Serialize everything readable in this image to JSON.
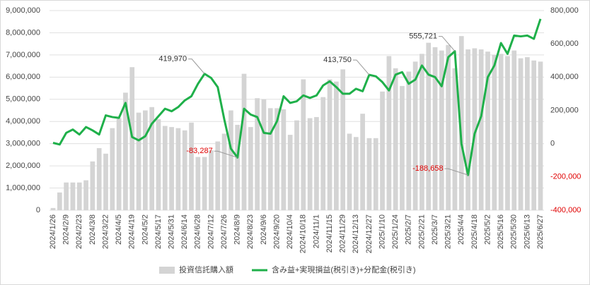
{
  "chart_data": {
    "type": "combo",
    "categories": [
      "2024/1/26",
      null,
      "2024/2/9",
      null,
      "2024/2/23",
      null,
      "2024/3/8",
      null,
      "2024/3/22",
      null,
      "2024/4/5",
      null,
      "2024/4/19",
      null,
      "2024/5/2",
      null,
      "2024/5/17",
      null,
      "2024/5/31",
      null,
      "2024/6/14",
      null,
      "2024/6/28",
      null,
      "2024/7/12",
      null,
      "2024/7/26",
      null,
      "2024/8/9",
      null,
      "2024/8/23",
      null,
      "2024/9/6",
      null,
      "2024/9/20",
      null,
      "2024/10/4",
      null,
      "2024/10/18",
      null,
      "2024/11/1",
      null,
      "2024/11/15",
      null,
      "2024/11/29",
      null,
      "2024/12/13",
      null,
      "2024/12/27",
      null,
      "2025/1/10",
      null,
      "2025/1/24",
      null,
      "2025/2/7",
      null,
      "2025/2/21",
      null,
      "2025/3/7",
      null,
      "2025/3/21",
      null,
      "2025/4/4",
      null,
      "2025/4/18",
      null,
      "2025/5/2",
      null,
      "2025/5/16",
      null,
      "2025/5/30",
      null,
      "2025/6/13",
      null,
      "2025/6/27"
    ],
    "series": [
      {
        "name": "投資信託購入額",
        "type": "bar",
        "color": "#d4d4d4",
        "axis": "y",
        "values": [
          100000,
          800000,
          1250000,
          1250000,
          1250000,
          1350000,
          2200000,
          2800000,
          2550000,
          3700000,
          4150000,
          5300000,
          6450000,
          4400000,
          4500000,
          4650000,
          4100000,
          3800000,
          3750000,
          3700000,
          3600000,
          3950000,
          2400000,
          2400000,
          2700000,
          3100000,
          3450000,
          4500000,
          3850000,
          6150000,
          3750000,
          5050000,
          5000000,
          4600000,
          4600000,
          4550000,
          3400000,
          4050000,
          5900000,
          4150000,
          4200000,
          5100000,
          5900000,
          5800000,
          6350000,
          3450000,
          3300000,
          4350000,
          3250000,
          3250000,
          5350000,
          6950000,
          6400000,
          5600000,
          6250000,
          6700000,
          7050000,
          7550000,
          7350000,
          7200000,
          7450000,
          6400000,
          7850000,
          7250000,
          7300000,
          7250000,
          7150000,
          7000000,
          7050000,
          6950000,
          7200000,
          6850000,
          6900000,
          6750000,
          6700000
        ]
      },
      {
        "name": "含み益+実現損益(税引き)+分配金(税引き)",
        "type": "line",
        "color": "#1fb04a",
        "axis": "y2",
        "values": [
          5000,
          -5000,
          65000,
          85000,
          55000,
          100000,
          80000,
          55000,
          170000,
          160000,
          155000,
          245000,
          40000,
          20000,
          45000,
          120000,
          165000,
          210000,
          195000,
          220000,
          260000,
          285000,
          360000,
          419970,
          395000,
          340000,
          145000,
          -30000,
          -83287,
          210000,
          175000,
          160000,
          65000,
          60000,
          135000,
          285000,
          245000,
          255000,
          290000,
          275000,
          290000,
          350000,
          375000,
          340000,
          300000,
          300000,
          330000,
          315000,
          413750,
          405000,
          370000,
          320000,
          415000,
          430000,
          360000,
          385000,
          470000,
          415000,
          400000,
          345000,
          520000,
          555721,
          0,
          -188658,
          60000,
          165000,
          400000,
          470000,
          605000,
          540000,
          650000,
          645000,
          650000,
          630000,
          750000
        ],
        "value_labels": [
          null,
          null,
          null,
          null,
          null,
          null,
          null,
          null,
          null,
          null,
          null,
          null,
          null,
          null,
          null,
          null,
          null,
          null,
          null,
          null,
          null,
          null,
          null,
          "419,970",
          null,
          null,
          null,
          null,
          "-83,287",
          null,
          null,
          null,
          null,
          null,
          null,
          null,
          null,
          null,
          null,
          null,
          null,
          null,
          null,
          null,
          null,
          null,
          null,
          null,
          "413,750",
          null,
          null,
          null,
          null,
          null,
          null,
          null,
          null,
          null,
          null,
          null,
          null,
          "555,721",
          null,
          "-188,658",
          null,
          null,
          null,
          null,
          null,
          null,
          null,
          null,
          null,
          null,
          null
        ]
      }
    ],
    "ylim": [
      0,
      9000000
    ],
    "yticks": [
      0,
      {
        "value": 1000000,
        "label": "1,000,000"
      },
      {
        "value": 2000000,
        "label": "2,000,000"
      },
      {
        "value": 3000000,
        "label": "3,000,000"
      },
      {
        "value": 4000000,
        "label": "4,000,000"
      },
      {
        "value": 5000000,
        "label": "5,000,000"
      },
      {
        "value": 6000000,
        "label": "6,000,000"
      },
      {
        "value": 7000000,
        "label": "7,000,000"
      },
      {
        "value": 8000000,
        "label": "8,000,000"
      },
      {
        "value": 9000000,
        "label": "9,000,000"
      }
    ],
    "y2lim": [
      -400000,
      800000
    ],
    "y2ticks": [
      {
        "value": -400000,
        "label": "-400,000"
      },
      {
        "value": -200000,
        "label": "-200,000"
      },
      0,
      {
        "value": 200000,
        "label": "200,000"
      },
      {
        "value": 400000,
        "label": "400,000"
      },
      {
        "value": 600000,
        "label": "600,000"
      },
      {
        "value": 800000,
        "label": "800,000"
      }
    ],
    "negative_color": "#e00000",
    "grid": true,
    "legend": "bottom"
  }
}
